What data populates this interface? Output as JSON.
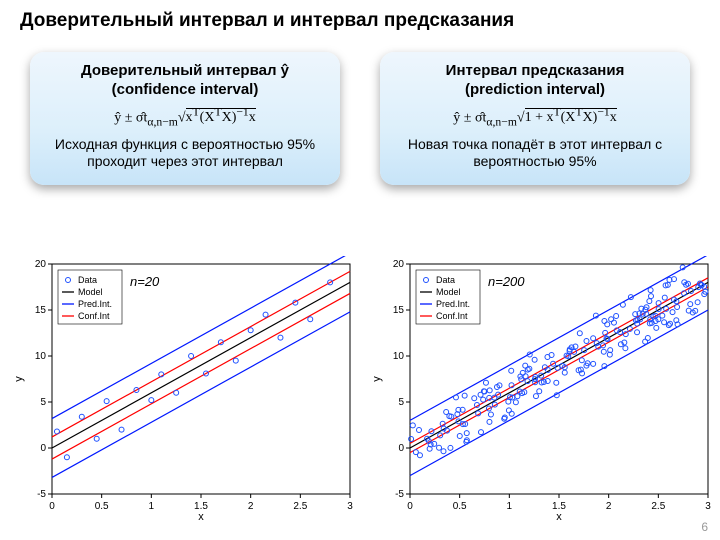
{
  "title": "Доверительный интервал и интервал предсказания",
  "page_number": "6",
  "panel_left": {
    "heading_l1": "Доверительный интервал ŷ",
    "heading_l2": "(confidence interval)",
    "formula_html": "ŷ ± σ̂t<sub>α,n−m</sub>√<span class='sqrt'>x<sup>T</sup>(X<sup>T</sup>X)<sup>−1</sup>x</span>",
    "desc": "Исходная функция с вероятностью 95% проходит через этот интервал"
  },
  "panel_right": {
    "heading_l1": "Интервал предсказания",
    "heading_l2": "(prediction interval)",
    "formula_html": "ŷ ± σ̂t<sub>α,n−m</sub>√<span class='sqrt'>1 + x<sup>T</sup>(X<sup>T</sup>X)<sup>−1</sup>x</span>",
    "desc": "Новая точка попадёт в этот интервал с вероятностью 95%"
  },
  "chart_common": {
    "xlabel": "x",
    "ylabel": "y",
    "xlim": [
      0,
      3
    ],
    "ylim": [
      -5,
      20
    ],
    "xticks": [
      0,
      0.5,
      1,
      1.5,
      2,
      2.5,
      3
    ],
    "yticks": [
      -5,
      0,
      5,
      10,
      15,
      20
    ],
    "axis_color": "#000000",
    "grid_color": "#cccccc",
    "tick_fontsize": 10,
    "label_fontsize": 11,
    "data_marker_color": "#1e50ff",
    "model_color": "#000000",
    "pred_color": "#0018ff",
    "conf_color": "#ff0000",
    "line_width": 1.2,
    "legend_items": [
      {
        "label": "Data",
        "type": "marker",
        "color": "#1e50ff"
      },
      {
        "label": "Model",
        "type": "line",
        "color": "#000000"
      },
      {
        "label": "Pred.Int.",
        "type": "line",
        "color": "#0018ff"
      },
      {
        "label": "Conf.Int",
        "type": "line",
        "color": "#ff0000"
      }
    ]
  },
  "chart_left": {
    "n_label": "n=20",
    "model": {
      "slope": 6,
      "intercept": 0
    },
    "conf_offset": 1.2,
    "pred_offset": 3.2,
    "data": [
      [
        0.05,
        1.8
      ],
      [
        0.15,
        -1.0
      ],
      [
        0.3,
        3.4
      ],
      [
        0.45,
        1.0
      ],
      [
        0.55,
        5.1
      ],
      [
        0.7,
        2.0
      ],
      [
        0.85,
        6.3
      ],
      [
        1.0,
        5.2
      ],
      [
        1.1,
        8.0
      ],
      [
        1.25,
        6.0
      ],
      [
        1.4,
        10.0
      ],
      [
        1.55,
        8.1
      ],
      [
        1.7,
        11.5
      ],
      [
        1.85,
        9.5
      ],
      [
        2.0,
        12.8
      ],
      [
        2.15,
        14.5
      ],
      [
        2.3,
        12.0
      ],
      [
        2.45,
        15.8
      ],
      [
        2.6,
        14.0
      ],
      [
        2.8,
        18.0
      ]
    ]
  },
  "chart_right": {
    "n_label": "n=200",
    "model": {
      "slope": 6,
      "intercept": 0
    },
    "conf_offset": 0.5,
    "pred_offset": 3.0,
    "seed_params": {
      "count": 200,
      "noise": 2.2
    }
  }
}
